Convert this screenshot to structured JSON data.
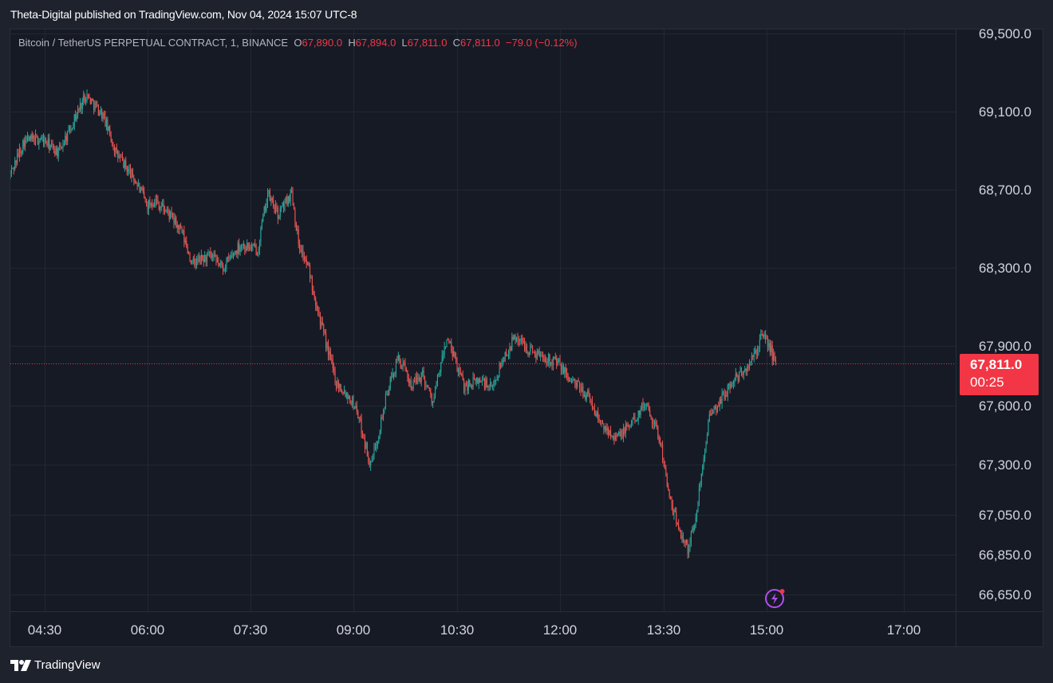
{
  "header": {
    "publish_text": "Theta-Digital published on TradingView.com, Nov 04, 2024 15:07 UTC-8"
  },
  "legend": {
    "symbol": "Bitcoin / TetherUS PERPETUAL CONTRACT, 1, BINANCE",
    "o_label": "O",
    "o_value": "67,890.0",
    "h_label": "H",
    "h_value": "67,894.0",
    "l_label": "L",
    "l_value": "67,811.0",
    "c_label": "C",
    "c_value": "67,811.0",
    "change": "−79.0 (−0.12%)"
  },
  "price_badge": {
    "price": "67,811.0",
    "countdown": "00:25"
  },
  "footer": {
    "brand": "TradingView"
  },
  "colors": {
    "background": "#161a25",
    "grid": "#232732",
    "up": "#26a69a",
    "down": "#ef5350",
    "price_badge": "#f23645",
    "axis_text": "#d1d4dc"
  },
  "icons": [
    "tradingview-logo-icon",
    "flash-icon"
  ],
  "chart_data": {
    "type": "candlestick",
    "interval": "1",
    "x_ticks": [
      "04:30",
      "06:00",
      "07:30",
      "09:00",
      "10:30",
      "12:00",
      "13:30",
      "15:00",
      "17:00"
    ],
    "x_tick_hours": [
      4.5,
      6.0,
      7.5,
      9.0,
      10.5,
      12.0,
      13.5,
      15.0,
      17.0
    ],
    "y_ticks": [
      "69,500.0",
      "69,100.0",
      "68,700.0",
      "68,300.0",
      "67,900.0",
      "67,600.0",
      "67,300.0",
      "67,050.0",
      "66,850.0",
      "66,650.0"
    ],
    "y_tick_values": [
      69500,
      69100,
      68700,
      68300,
      67900,
      67600,
      67300,
      67050,
      66850,
      66650
    ],
    "y_scale": "log",
    "grid": true,
    "last_price": 67811,
    "price_path_hours": [
      4.0,
      4.2,
      4.45,
      4.7,
      4.85,
      5.1,
      5.35,
      5.55,
      5.8,
      6.0,
      6.1,
      6.3,
      6.5,
      6.65,
      6.9,
      7.1,
      7.35,
      7.6,
      7.75,
      7.9,
      8.1,
      8.2,
      8.35,
      8.55,
      8.75,
      8.95,
      9.05,
      9.25,
      9.5,
      9.65,
      9.85,
      10.0,
      10.15,
      10.35,
      10.6,
      10.85,
      11.0,
      11.15,
      11.35,
      11.55,
      11.75,
      11.95,
      12.15,
      12.4,
      12.6,
      12.85,
      13.05,
      13.25,
      13.45,
      13.6,
      13.75,
      13.85,
      13.95,
      14.15,
      14.35,
      14.55,
      14.75,
      14.95,
      15.05,
      15.13
    ],
    "price_path_values": [
      68780,
      68950,
      68960,
      68890,
      69000,
      69190,
      69080,
      68880,
      68760,
      68620,
      68650,
      68580,
      68480,
      68320,
      68360,
      68300,
      68420,
      68390,
      68680,
      68570,
      68690,
      68430,
      68290,
      67980,
      67720,
      67640,
      67580,
      67290,
      67680,
      67840,
      67700,
      67760,
      67620,
      67940,
      67700,
      67730,
      67680,
      67820,
      67950,
      67880,
      67850,
      67820,
      67730,
      67650,
      67500,
      67440,
      67520,
      67620,
      67420,
      67100,
      66960,
      66880,
      67000,
      67520,
      67640,
      67740,
      67800,
      67960,
      67890,
      67811
    ]
  }
}
